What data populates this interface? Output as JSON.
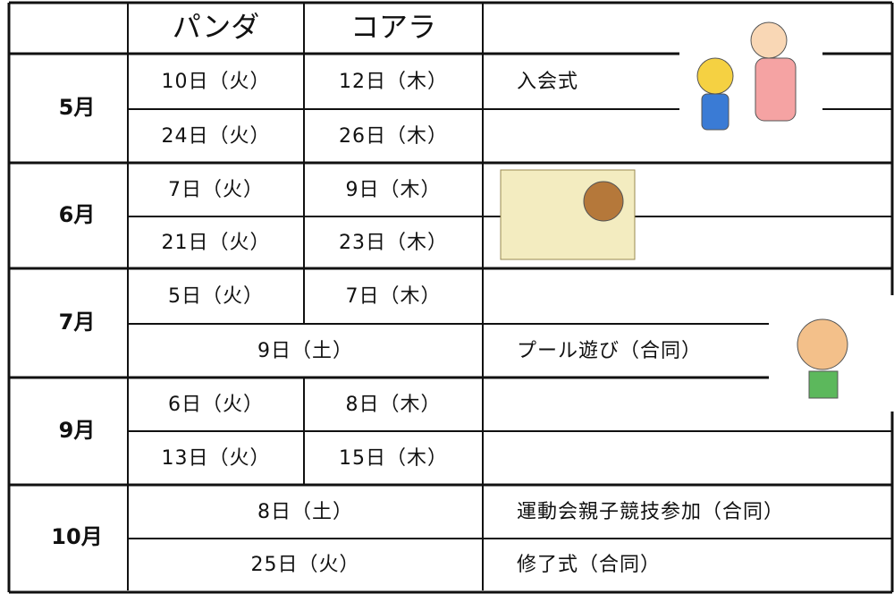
{
  "table": {
    "header": [
      "パンダ",
      "コアラ"
    ],
    "months": [
      {
        "month": "5月",
        "rows": [
          {
            "panda": "10日（火）",
            "koala": "12日（木）",
            "event": "入会式"
          },
          {
            "panda": "24日（火）",
            "koala": "26日（木）"
          }
        ]
      },
      {
        "month": "6月",
        "rows": [
          {
            "panda": "7日（火）",
            "koala": "9日（木）"
          },
          {
            "panda": "21日（火）",
            "koala": "23日（木）"
          }
        ]
      },
      {
        "month": "7月",
        "rows": [
          {
            "panda": "5日（火）",
            "koala": "7日（木）"
          },
          {
            "joint": "9日（土）",
            "event": "プール遊び（合同）"
          }
        ]
      },
      {
        "month": "9月",
        "rows": [
          {
            "panda": "6日（火）",
            "koala": "8日（木）"
          },
          {
            "panda": "13日（火）",
            "koala": "15日（木）"
          }
        ]
      },
      {
        "month": "10月",
        "rows": [
          {
            "joint": "8日（土）",
            "event": "運動会親子競技参加（合同）"
          },
          {
            "joint": "25日（火）",
            "event": "修了式（合同）"
          }
        ]
      }
    ]
  }
}
